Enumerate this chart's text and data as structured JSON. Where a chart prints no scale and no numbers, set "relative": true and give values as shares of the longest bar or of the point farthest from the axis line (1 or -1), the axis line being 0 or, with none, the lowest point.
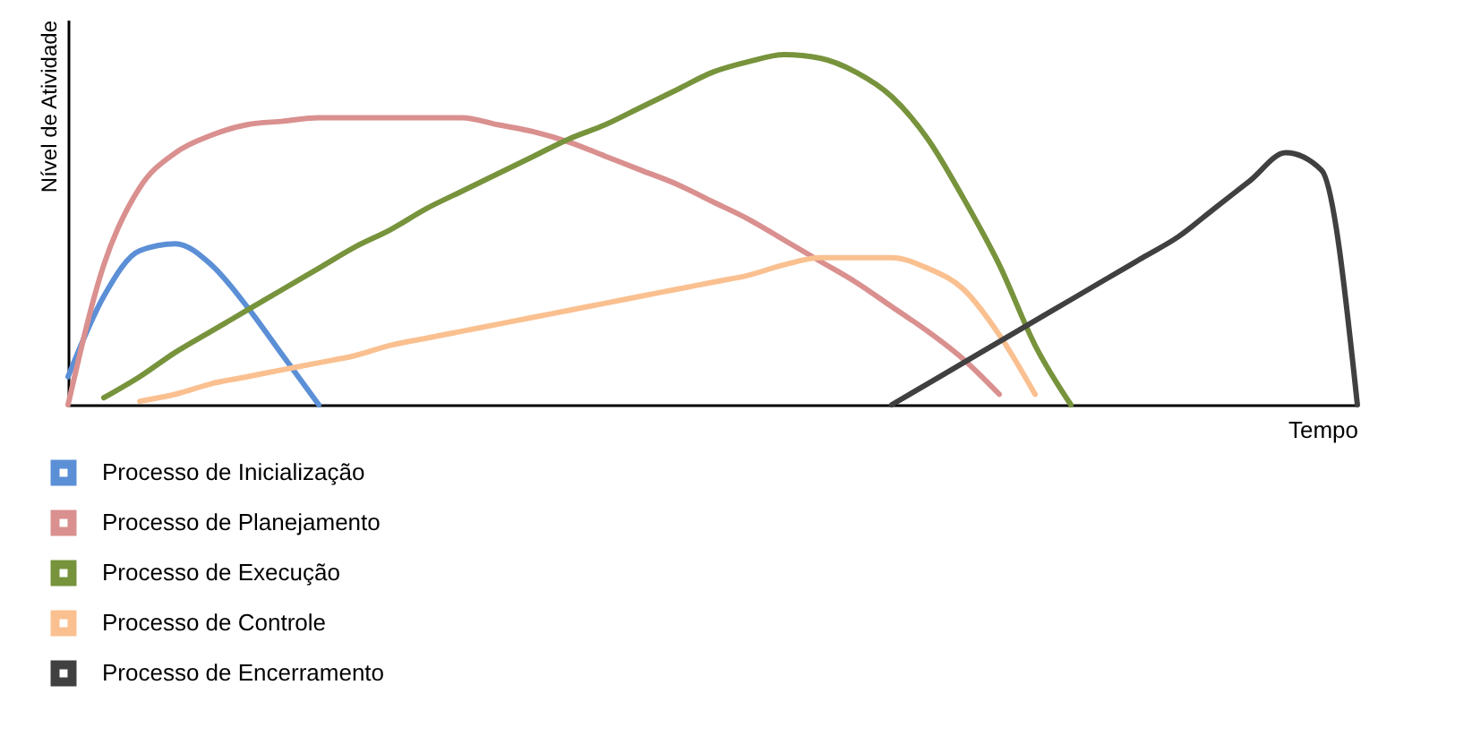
{
  "chart_data": {
    "type": "line",
    "xlabel": "Tempo",
    "ylabel": "Nível de Atividade",
    "relative": true,
    "legend": "bottom left",
    "categories": [
      null,
      null,
      null,
      null,
      null,
      null,
      null,
      null,
      null,
      null,
      null,
      null,
      null,
      null,
      null,
      null,
      null,
      null,
      null,
      null,
      null,
      null,
      null,
      null,
      null,
      null,
      null,
      null,
      null,
      null,
      null,
      null,
      null,
      null,
      null,
      null,
      null
    ],
    "series": [
      {
        "name": "Processo de Inicialização",
        "color": "#5b8fd6",
        "values": [
          0.08,
          0.31,
          0.44,
          0.46,
          0.4,
          0.28,
          0.14,
          0,
          null,
          null,
          null,
          null,
          null,
          null,
          null,
          null,
          null,
          null,
          null,
          null,
          null,
          null,
          null,
          null,
          null,
          null,
          null,
          null,
          null,
          null,
          null,
          null,
          null,
          null,
          null,
          null,
          null
        ]
      },
      {
        "name": "Processo de Planejamento",
        "color": "#d9908f",
        "values": [
          0,
          0.4,
          0.62,
          0.72,
          0.77,
          0.8,
          0.81,
          0.82,
          0.82,
          0.82,
          0.82,
          0.82,
          0.8,
          0.78,
          0.75,
          0.71,
          0.67,
          0.63,
          0.58,
          0.53,
          0.47,
          0.41,
          0.35,
          0.28,
          0.21,
          0.13,
          0.03,
          null,
          null,
          null,
          null,
          null,
          null,
          null,
          null,
          null,
          null
        ]
      },
      {
        "name": "Processo de Execução",
        "color": "#77933c",
        "values": [
          null,
          0.02,
          0.08,
          0.15,
          0.21,
          0.27,
          0.33,
          0.39,
          0.45,
          0.5,
          0.56,
          0.61,
          0.66,
          0.71,
          0.76,
          0.8,
          0.85,
          0.9,
          0.95,
          0.98,
          1,
          0.99,
          0.95,
          0.88,
          0.76,
          0.59,
          0.4,
          0.17,
          0,
          null,
          null,
          null,
          null,
          null,
          null,
          null,
          null
        ]
      },
      {
        "name": "Processo de Controle",
        "color": "#fac090",
        "values": [
          null,
          null,
          0.01,
          0.03,
          0.06,
          0.08,
          0.1,
          0.12,
          0.14,
          0.17,
          0.19,
          0.21,
          0.23,
          0.25,
          0.27,
          0.29,
          0.31,
          0.33,
          0.35,
          0.37,
          0.4,
          0.42,
          0.42,
          0.42,
          0.39,
          0.33,
          0.2,
          0.03,
          null,
          null,
          null,
          null,
          null,
          null,
          null,
          null,
          null
        ]
      },
      {
        "name": "Processo de Encerramento",
        "color": "#404040",
        "values": [
          null,
          null,
          null,
          null,
          null,
          null,
          null,
          null,
          null,
          null,
          null,
          null,
          null,
          null,
          null,
          null,
          null,
          null,
          null,
          null,
          null,
          null,
          null,
          0,
          0.06,
          0.12,
          0.18,
          0.24,
          0.3,
          0.36,
          0.42,
          0.48,
          0.56,
          0.64,
          0.72,
          0.67,
          0
        ]
      }
    ]
  }
}
